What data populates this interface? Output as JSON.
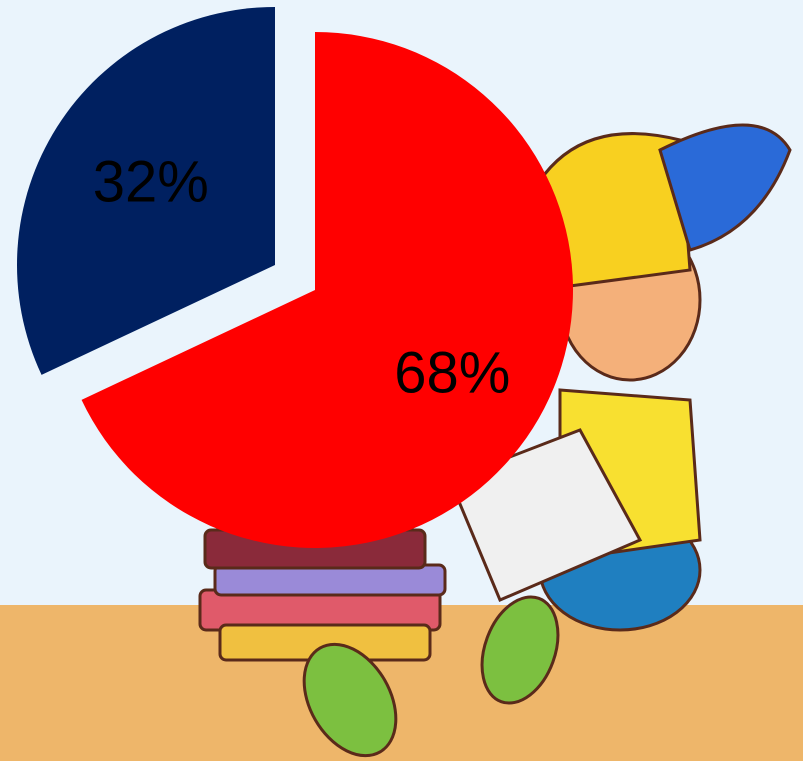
{
  "chart_data": {
    "type": "pie",
    "values": [
      68,
      32
    ],
    "value_labels": [
      "68%",
      "32%"
    ],
    "colors": [
      "#ff0000",
      "#002060"
    ]
  }
}
